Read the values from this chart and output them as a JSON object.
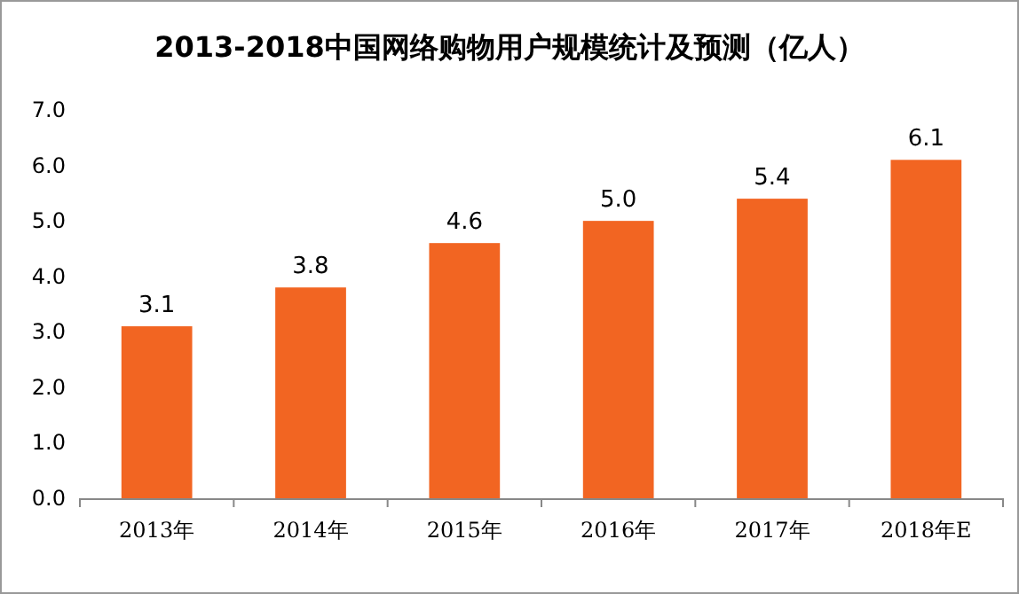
{
  "chart_data": {
    "type": "bar",
    "title": "2013-2018中国网络购物用户规模统计及预测（亿人）",
    "categories": [
      "2013年",
      "2014年",
      "2015年",
      "2016年",
      "2017年",
      "2018年E"
    ],
    "values": [
      3.1,
      3.8,
      4.6,
      5.0,
      5.4,
      6.1
    ],
    "value_labels": [
      "3.1",
      "3.8",
      "4.6",
      "5.0",
      "5.4",
      "6.1"
    ],
    "color": "#f26522",
    "ylim": [
      0,
      7
    ],
    "yticks": [
      {
        "value": 0,
        "label": "0.0"
      },
      {
        "value": 1,
        "label": "1.0"
      },
      {
        "value": 2,
        "label": "2.0"
      },
      {
        "value": 3,
        "label": "3.0"
      },
      {
        "value": 4,
        "label": "4.0"
      },
      {
        "value": 5,
        "label": "5.0"
      },
      {
        "value": 6,
        "label": "6.0"
      },
      {
        "value": 7,
        "label": "7.0"
      }
    ]
  }
}
